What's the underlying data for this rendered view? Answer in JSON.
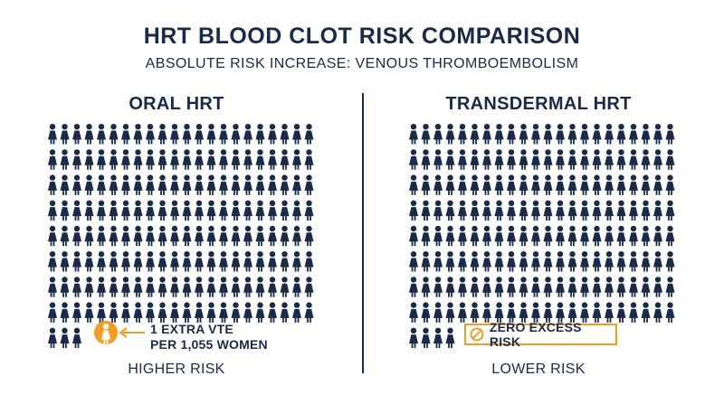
{
  "header": {
    "title": "HRT BLOOD CLOT RISK COMPARISON",
    "subtitle": "ABSOLUTE RISK INCREASE: VENOUS THROMBOEMBOLISM"
  },
  "colors": {
    "navy": "#1a2b4a",
    "orange": "#f39c1f"
  },
  "chart_data": [
    {
      "type": "pictogram",
      "title": "ORAL HRT",
      "footer": "HIGHER RISK",
      "icon": "woman-icon",
      "highlight": {
        "count": 1,
        "color": "#f39c1f"
      },
      "annotation": [
        "1 EXTRA VTE",
        "PER 1,055 WOMEN"
      ]
    },
    {
      "type": "pictogram",
      "title": "TRANSDERMAL HRT",
      "footer": "LOWER RISK",
      "icon": "woman-icon",
      "highlight": {
        "count": 0
      },
      "annotation": [
        "ZERO EXCESS RISK"
      ]
    }
  ]
}
